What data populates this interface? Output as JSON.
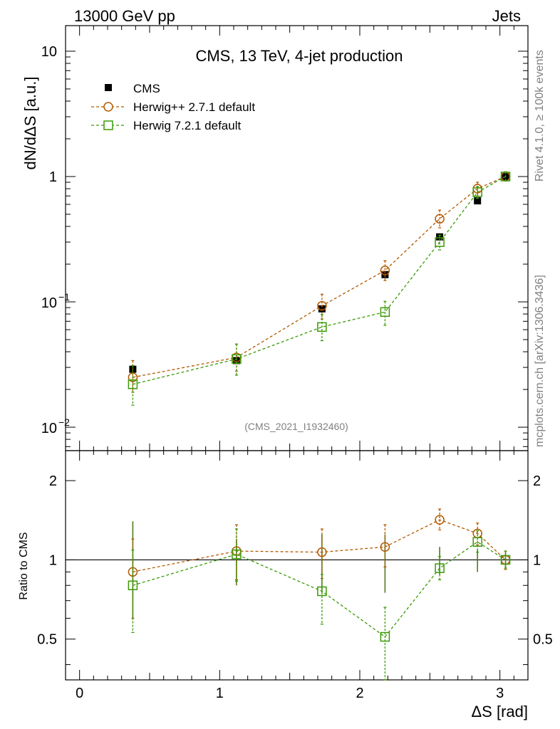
{
  "header": {
    "left": "13000 GeV pp",
    "right": "Jets"
  },
  "side": {
    "top": "Rivet 4.1.0, ≥ 100k events",
    "bottom": "mcplots.cern.ch [arXiv:1306.3436]"
  },
  "colors": {
    "cms": "#000000",
    "herwigpp": "#b35900",
    "herwig7": "#3a9a06",
    "grey": "#808080"
  },
  "chart_data": [
    {
      "type": "scatter",
      "title": "CMS, 13 TeV, 4-jet production",
      "ylabel": "dN/dΔS [a.u.]",
      "yscale": "log",
      "ylim": [
        0.0065,
        16
      ],
      "xlim": [
        -0.1,
        3.2
      ],
      "yticks": [
        {
          "value": 10,
          "label": "10"
        },
        {
          "value": 1,
          "label": "1"
        },
        {
          "value": 0.1,
          "base": "10",
          "exp": "−1"
        },
        {
          "value": 0.01,
          "base": "10",
          "exp": "−2"
        }
      ],
      "watermark": "(CMS_2021_I1932460)",
      "x": [
        0.38,
        1.12,
        1.73,
        2.18,
        2.57,
        2.84,
        3.04
      ],
      "series": [
        {
          "name": "CMS",
          "marker": "filled-square",
          "values": [
            0.029,
            0.034,
            0.088,
            0.165,
            0.33,
            0.64,
            1.0
          ],
          "err_lo": [
            0.002,
            0.002,
            0.005,
            0.008,
            0.015,
            0.03,
            0.04
          ],
          "err_hi": [
            0.002,
            0.002,
            0.005,
            0.008,
            0.015,
            0.03,
            0.04
          ]
        },
        {
          "name": "Herwig++ 2.7.1 default",
          "marker": "open-circle",
          "values": [
            0.025,
            0.036,
            0.093,
            0.178,
            0.46,
            0.8,
            1.0
          ],
          "err_lo": [
            0.006,
            0.008,
            0.02,
            0.03,
            0.07,
            0.1,
            0.08
          ],
          "err_hi": [
            0.009,
            0.01,
            0.022,
            0.035,
            0.08,
            0.1,
            0.09
          ]
        },
        {
          "name": "Herwig 7.2.1 default",
          "marker": "open-square",
          "values": [
            0.022,
            0.035,
            0.063,
            0.083,
            0.3,
            0.75,
            1.0
          ],
          "err_lo": [
            0.007,
            0.009,
            0.014,
            0.018,
            0.04,
            0.08,
            0.08
          ],
          "err_hi": [
            0.009,
            0.011,
            0.016,
            0.018,
            0.04,
            0.08,
            0.09
          ]
        }
      ]
    },
    {
      "type": "scatter",
      "ylabel": "Ratio to CMS",
      "xlabel": "ΔS [rad]",
      "yscale": "log",
      "ylim": [
        0.35,
        2.6
      ],
      "xlim": [
        -0.1,
        3.2
      ],
      "yticks": [
        {
          "value": 2,
          "label": "2"
        },
        {
          "value": 1,
          "label": "1"
        },
        {
          "value": 0.5,
          "label": "0.5"
        }
      ],
      "xticks": [
        {
          "value": 0,
          "label": "0"
        },
        {
          "value": 1,
          "label": "1"
        },
        {
          "value": 2,
          "label": "2"
        },
        {
          "value": 3,
          "label": "3"
        }
      ],
      "reference": 1,
      "x": [
        0.38,
        1.12,
        1.73,
        2.18,
        2.57,
        2.84,
        3.04
      ],
      "series": [
        {
          "name": "CMS",
          "values": [
            1,
            1,
            1,
            1,
            1,
            1,
            1
          ],
          "err_lo": [
            0.4,
            0.2,
            0.25,
            0.25,
            0.12,
            0.1,
            0.07
          ],
          "err_hi": [
            0.4,
            0.2,
            0.25,
            0.25,
            0.12,
            0.1,
            0.07
          ]
        },
        {
          "name": "Herwig++ 2.7.1 default",
          "values": [
            0.9,
            1.08,
            1.07,
            1.12,
            1.42,
            1.26,
            1.0
          ],
          "err_lo": [
            0.3,
            0.24,
            0.22,
            0.18,
            0.12,
            0.12,
            0.08
          ],
          "err_hi": [
            0.3,
            0.28,
            0.24,
            0.24,
            0.14,
            0.12,
            0.08
          ]
        },
        {
          "name": "Herwig 7.2.1 default",
          "values": [
            0.8,
            1.05,
            0.76,
            0.51,
            0.93,
            1.17,
            1.0
          ],
          "err_lo": [
            0.27,
            0.22,
            0.19,
            0.17,
            0.09,
            0.1,
            0.07
          ],
          "err_hi": [
            0.29,
            0.26,
            0.12,
            0.15,
            0.1,
            0.12,
            0.08
          ]
        }
      ]
    }
  ]
}
